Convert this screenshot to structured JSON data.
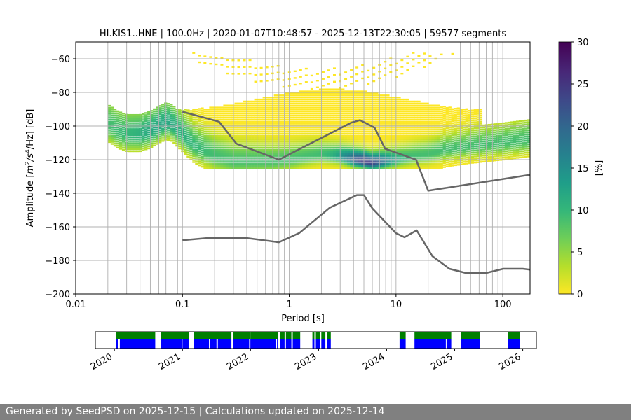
{
  "chart_data": [
    {
      "type": "heatmap",
      "title": "HI.KIS1..HNE | 100.0Hz | 2020-01-07T10:48:57 - 2025-12-13T22:30:05 | 59577 segments",
      "xlabel": "Period [s]",
      "ylabel_parts": [
        "Amplitude [",
        "m",
        "2",
        "/",
        "s",
        "4",
        "/Hz] [dB]"
      ],
      "x_scale": "log",
      "xlim": [
        0.01,
        180
      ],
      "ylim": [
        -200,
        -50
      ],
      "x_ticks": [
        0.01,
        0.1,
        1,
        10,
        100
      ],
      "x_tick_labels": [
        "0.01",
        "0.1",
        "1",
        "10",
        "100"
      ],
      "y_ticks": [
        -200,
        -180,
        -160,
        -140,
        -120,
        -100,
        -80,
        -60
      ],
      "y_tick_labels": [
        "−200",
        "−180",
        "−160",
        "−140",
        "−120",
        "−100",
        "−80",
        "−60"
      ],
      "grid_periods": [
        0.02,
        0.03,
        0.04,
        0.05,
        0.06,
        0.07,
        0.08,
        0.09,
        0.1,
        0.2,
        0.3,
        0.4,
        0.5,
        0.6,
        0.7,
        0.8,
        0.9,
        1,
        2,
        3,
        4,
        5,
        6,
        7,
        8,
        9,
        10,
        20,
        30,
        40,
        50,
        60,
        70,
        80,
        90,
        100
      ],
      "horizontal_grid": true,
      "colormap": "viridis_r",
      "colorbar": {
        "label": "[%]",
        "range": [
          0,
          30
        ],
        "ticks": [
          0,
          5,
          10,
          15,
          20,
          25,
          30
        ],
        "tick_labels": [
          "0",
          "5",
          "10",
          "15",
          "20",
          "25",
          "30"
        ],
        "colors": [
          "#fde725",
          "#b5de2b",
          "#6ece58",
          "#35b779",
          "#1f9e89",
          "#26828e",
          "#31688e",
          "#3e4989",
          "#482878",
          "#440154"
        ]
      },
      "psd_mode": {
        "period": [
          0.02,
          0.025,
          0.03,
          0.04,
          0.05,
          0.06,
          0.07,
          0.08,
          0.1,
          0.13,
          0.2,
          0.3,
          0.5,
          0.7,
          1,
          1.5,
          2,
          3,
          4,
          5,
          6,
          8,
          10,
          15,
          20,
          30,
          50,
          100,
          180
        ],
        "db": [
          -99,
          -103,
          -105,
          -105,
          -103,
          -100,
          -98,
          -99,
          -105,
          -112,
          -118,
          -121,
          -121,
          -121,
          -120,
          -118,
          -117,
          -118,
          -120,
          -121,
          -122,
          -121,
          -120,
          -118,
          -117,
          -114,
          -112,
          -110,
          -108
        ],
        "max_percent": 26
      },
      "low_noise_model": {
        "period": [
          0.1,
          0.17,
          0.4,
          0.8,
          1.24,
          2.4,
          4.3,
          5,
          6,
          10,
          12,
          15.6,
          21.9,
          31.6,
          45,
          70,
          101,
          154,
          180
        ],
        "db": [
          -168,
          -166.7,
          -166.7,
          -169.2,
          -163.7,
          -148.6,
          -141.1,
          -141.1,
          -149,
          -163.8,
          -166.2,
          -162.1,
          -177.5,
          -185,
          -187.5,
          -187.5,
          -185,
          -185,
          -185.5
        ]
      },
      "high_noise_model": {
        "period": [
          0.1,
          0.22,
          0.32,
          0.8,
          3.8,
          4.6,
          6.3,
          7.9,
          15.4,
          20,
          180
        ],
        "db": [
          -91.5,
          -97.4,
          -110.5,
          -120,
          -98,
          -96.5,
          -101,
          -113.5,
          -120,
          -138.5,
          -129
        ]
      }
    },
    {
      "type": "bar",
      "x_tick_labels": [
        "2020",
        "2021",
        "2022",
        "2023",
        "2024",
        "2025",
        "2026"
      ],
      "x_ticks": [
        2020.0,
        2021.0,
        2022.0,
        2023.0,
        2024.0,
        2025.0,
        2026.0
      ],
      "xlim": [
        2019.72,
        2026.2
      ],
      "colors": {
        "upper": "#007f00",
        "lower": "#0000ff"
      },
      "coverage": [
        [
          2020.02,
          2020.6
        ],
        [
          2020.68,
          2021.1
        ],
        [
          2021.17,
          2021.72
        ],
        [
          2021.75,
          2022.0
        ],
        [
          2022.0,
          2022.4
        ],
        [
          2022.43,
          2022.5
        ],
        [
          2022.52,
          2022.6
        ],
        [
          2022.62,
          2022.73
        ],
        [
          2022.91,
          2022.94
        ],
        [
          2022.96,
          2023.02
        ],
        [
          2023.04,
          2023.1
        ],
        [
          2023.12,
          2023.18
        ],
        [
          2024.19,
          2024.28
        ],
        [
          2024.41,
          2024.95
        ],
        [
          2025.09,
          2025.37
        ],
        [
          2025.78,
          2025.96
        ]
      ],
      "gaps_lower": [
        [
          2020.05,
          2020.08
        ],
        [
          2020.99,
          2021.0
        ],
        [
          2021.39,
          2021.4
        ],
        [
          2021.5,
          2021.52
        ],
        [
          2021.98,
          2021.99
        ],
        [
          2022.37,
          2022.39
        ],
        [
          2024.87,
          2024.88
        ]
      ]
    }
  ],
  "footer": {
    "text": "Generated by SeedPSD on 2025-12-15 | Calculations updated on 2025-12-14"
  }
}
